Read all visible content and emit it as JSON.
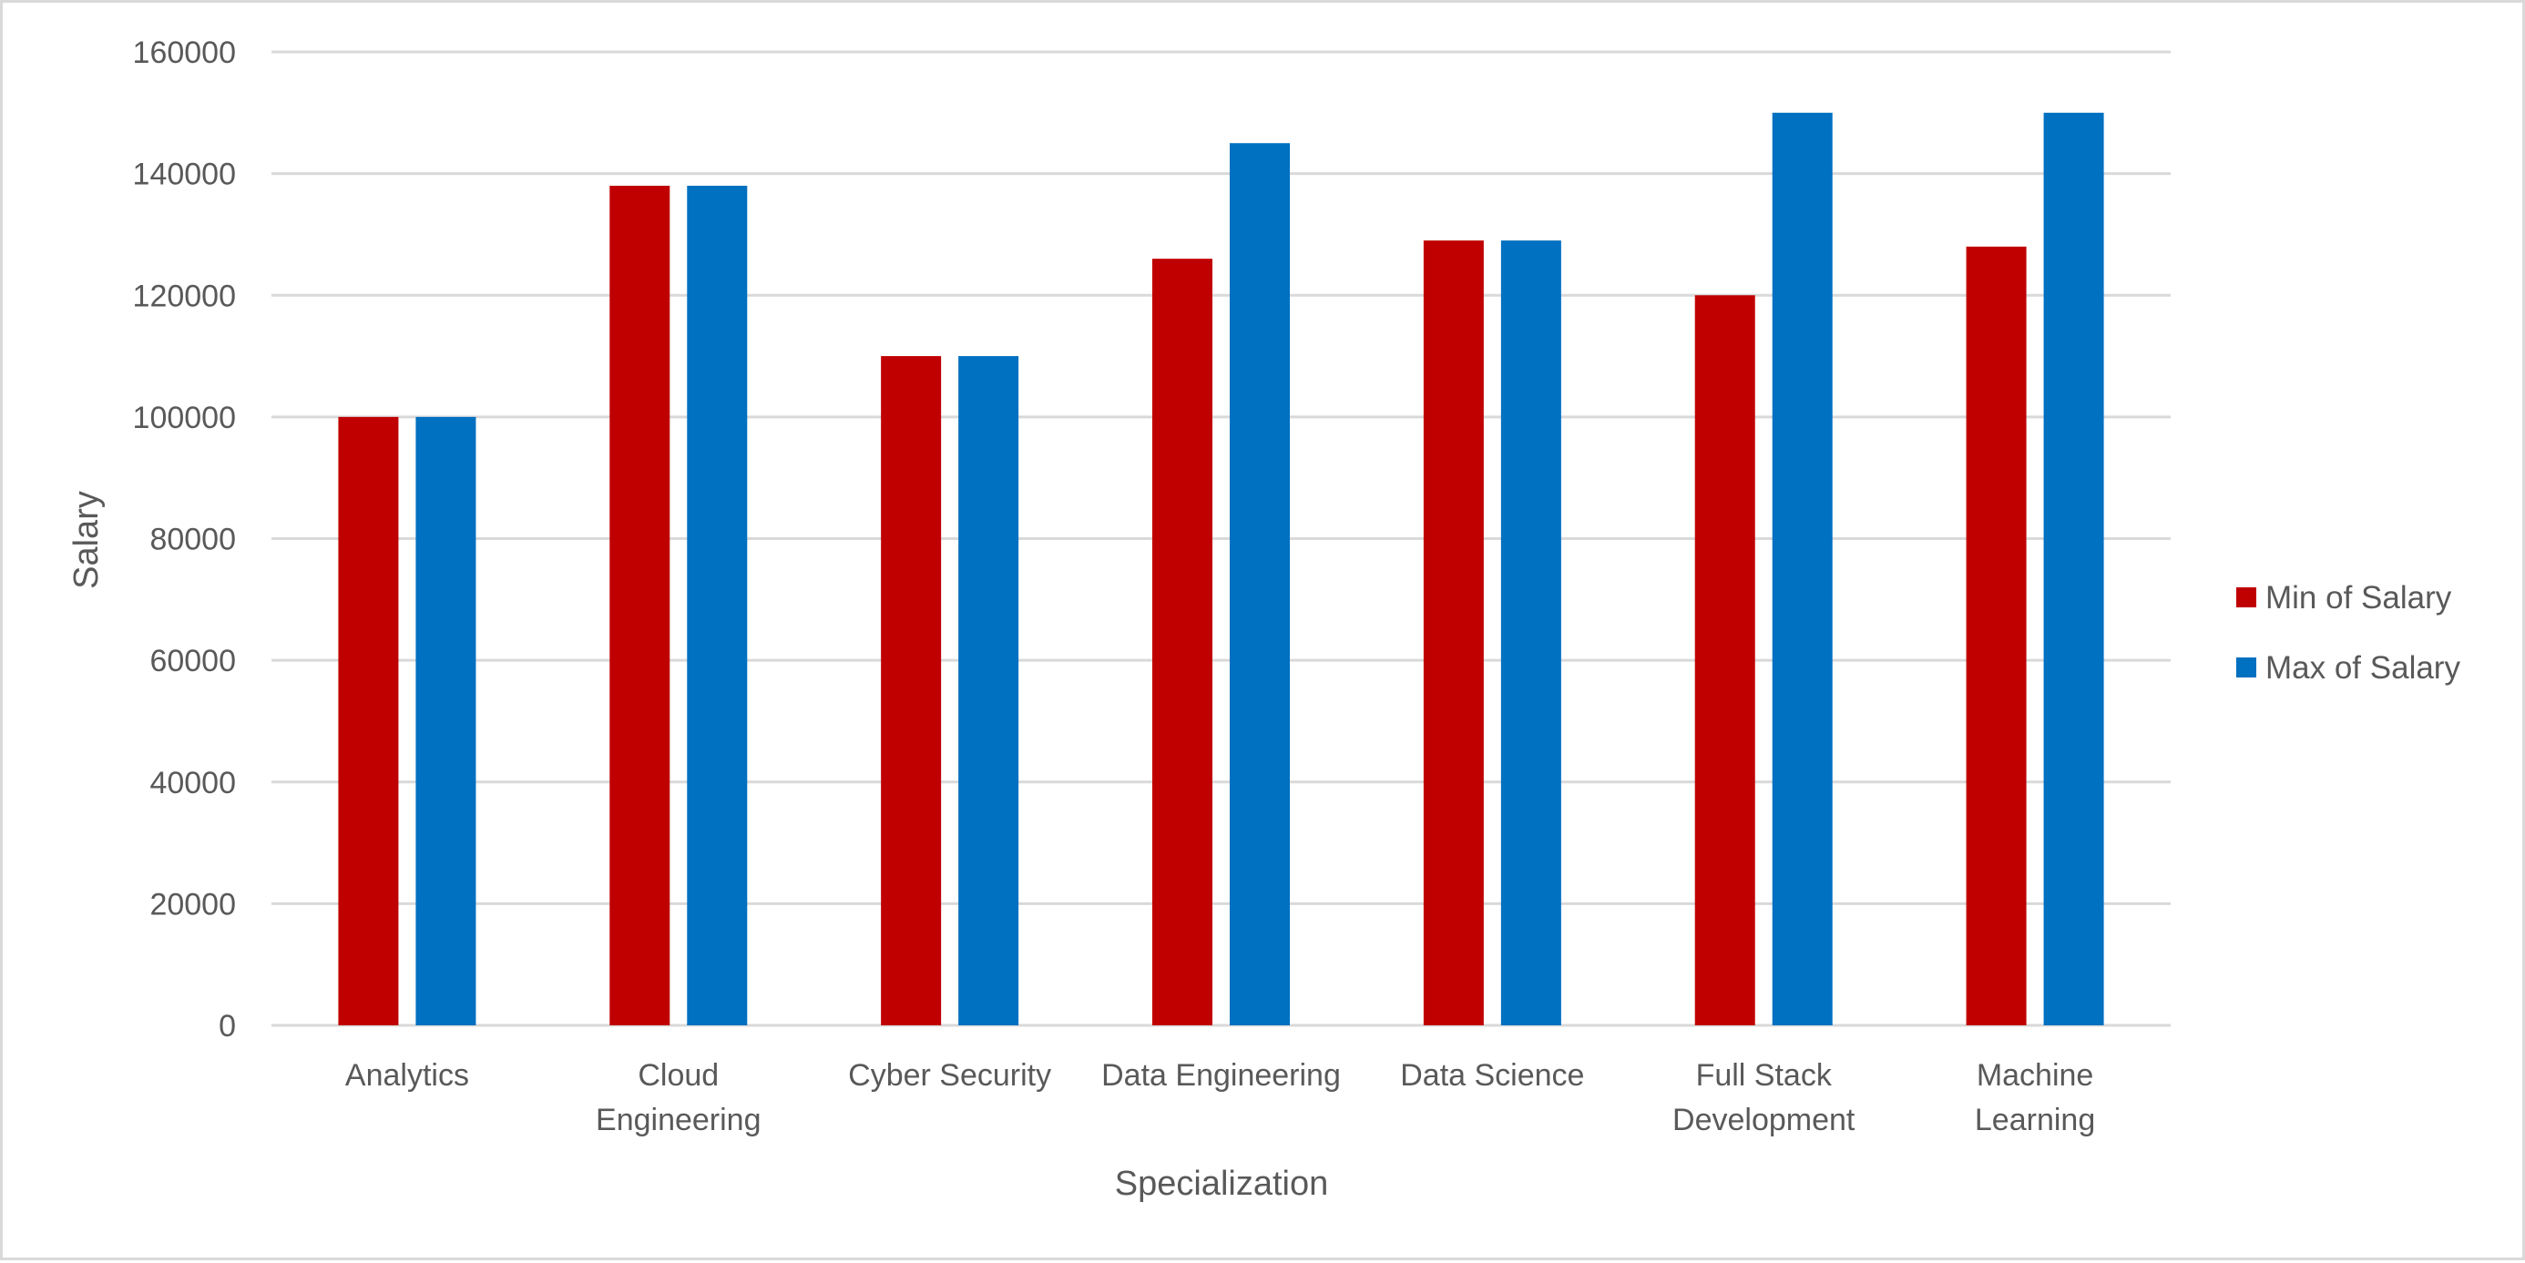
{
  "chart_data": {
    "type": "bar",
    "title": "",
    "xlabel": "Specialization",
    "ylabel": "Salary",
    "categories": [
      [
        "Analytics"
      ],
      [
        "Cloud",
        "Engineering"
      ],
      [
        "Cyber Security"
      ],
      [
        "Data Engineering"
      ],
      [
        "Data Science"
      ],
      [
        "Full Stack",
        "Development"
      ],
      [
        "Machine",
        "Learning"
      ]
    ],
    "series": [
      {
        "name": "Min of Salary",
        "color": "#c00000",
        "values": [
          100000,
          138000,
          110000,
          126000,
          129000,
          120000,
          128000
        ]
      },
      {
        "name": "Max of Salary",
        "color": "#0070c0",
        "values": [
          100000,
          138000,
          110000,
          145000,
          129000,
          150000,
          150000
        ]
      }
    ],
    "ylim": [
      0,
      160000
    ],
    "yticks": [
      0,
      20000,
      40000,
      60000,
      80000,
      100000,
      120000,
      140000,
      160000
    ],
    "grid": true,
    "legend_position": "right"
  }
}
